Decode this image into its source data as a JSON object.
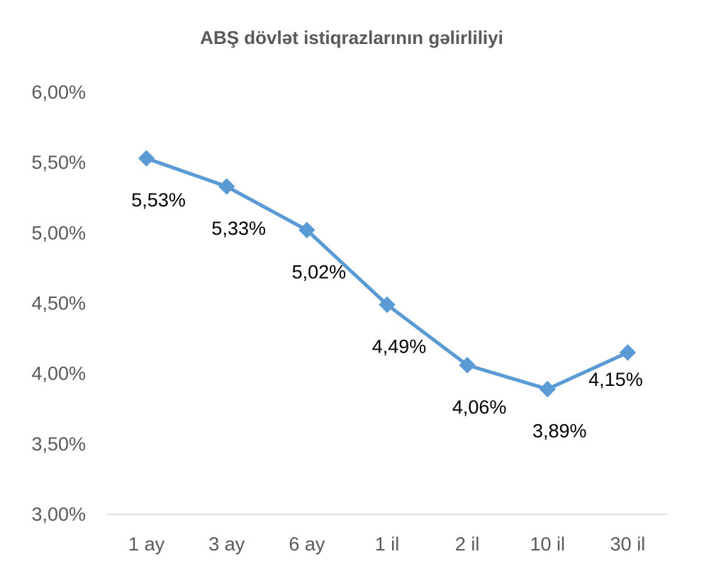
{
  "chart_data": {
    "type": "line",
    "title": "ABŞ dövlət istiqrazlarının gəlirliliyi",
    "categories": [
      "1 ay",
      "3 ay",
      "6 ay",
      "1 il",
      "2 il",
      "10 il",
      "30 il"
    ],
    "series": [
      {
        "values": [
          5.53,
          5.33,
          5.02,
          4.49,
          4.06,
          3.89,
          4.15
        ],
        "data_labels": [
          "5,53%",
          "5,33%",
          "5,02%",
          "4,49%",
          "4,06%",
          "3,89%",
          "4,15%"
        ],
        "color": "#5B9BD5",
        "marker": "diamond"
      }
    ],
    "ylim": [
      3.0,
      6.0
    ],
    "yticks": [
      3.0,
      3.5,
      4.0,
      4.5,
      5.0,
      5.5,
      6.0
    ],
    "ytick_labels": [
      "3,00%",
      "3,50%",
      "4,00%",
      "4,50%",
      "5,00%",
      "5,50%",
      "6,00%"
    ],
    "grid": false,
    "legend": "none",
    "axis_color": "#D9D9D9",
    "text_color": "#595959"
  }
}
